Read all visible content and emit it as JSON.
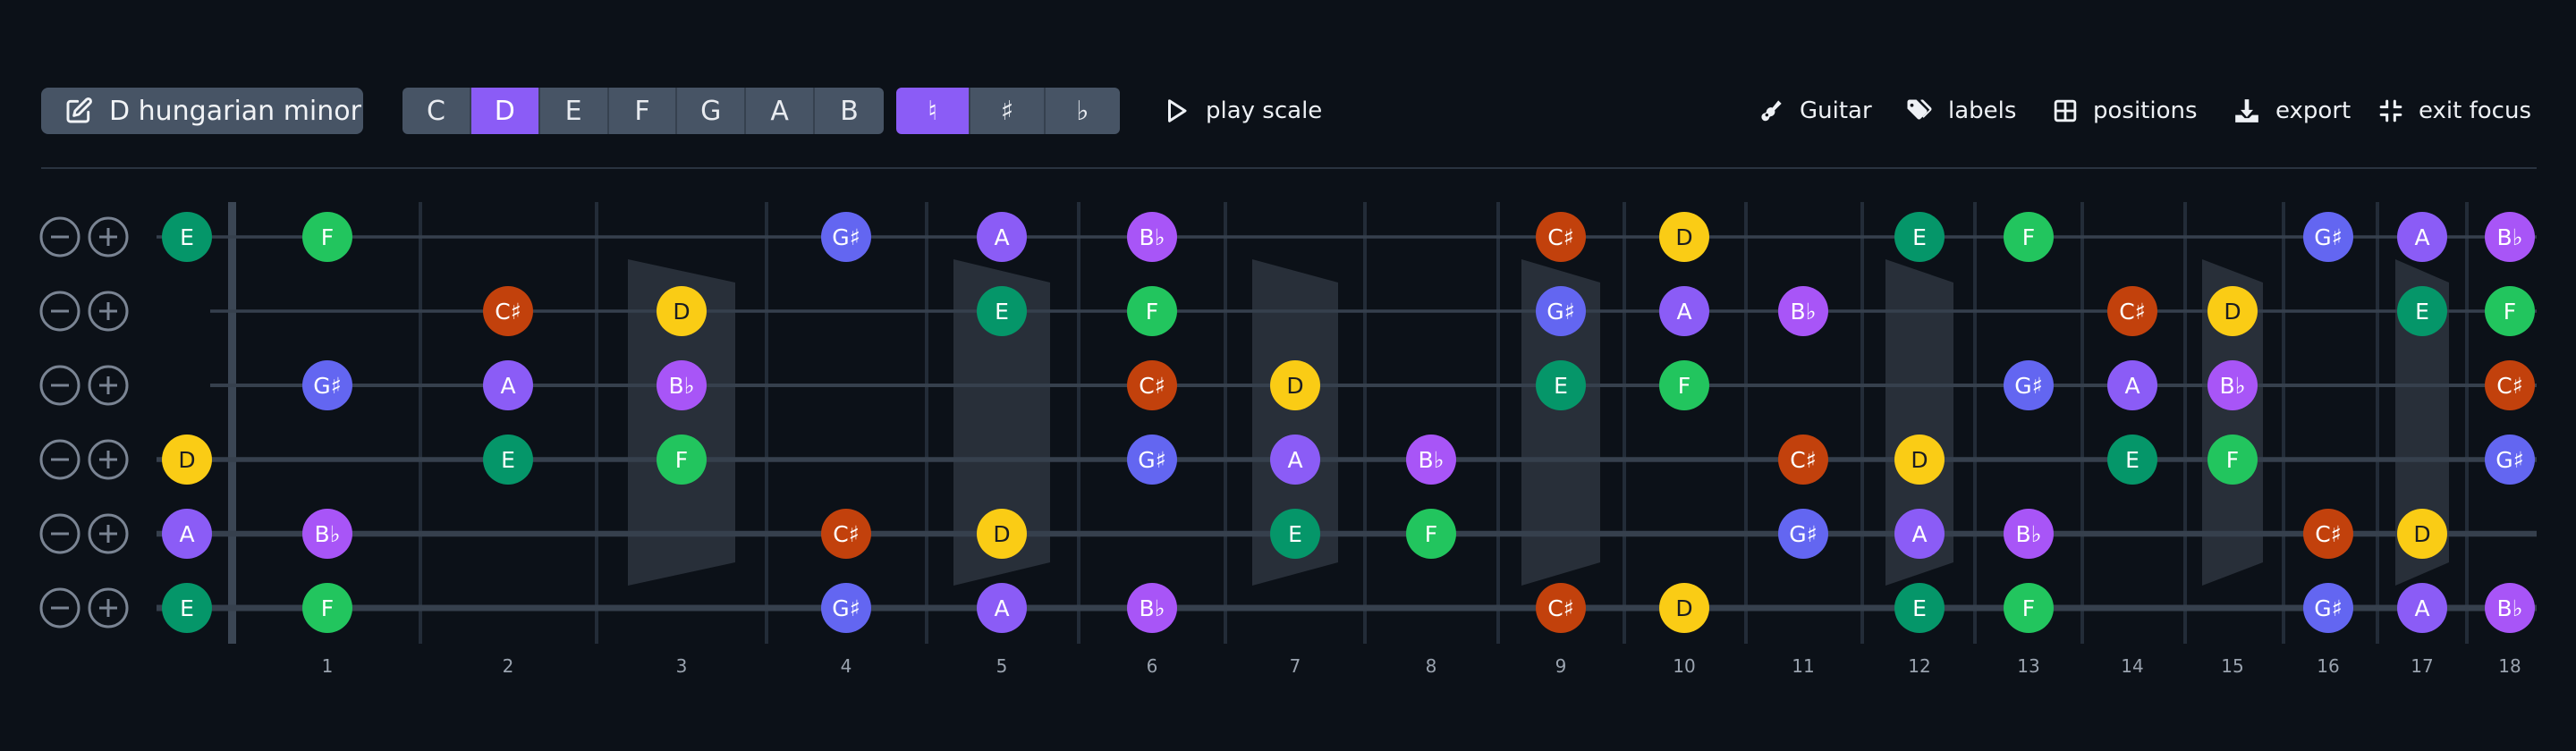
{
  "toolbar": {
    "scale_name": "D hungarian minor",
    "roots": [
      "C",
      "D",
      "E",
      "F",
      "G",
      "A",
      "B"
    ],
    "selected_root": "D",
    "accidentals": [
      "♮",
      "♯",
      "♭"
    ],
    "selected_accidental": "♮",
    "play_label": "play scale",
    "instrument_label": "Guitar",
    "labels_label": "labels",
    "positions_label": "positions",
    "export_label": "export",
    "exit_focus_label": "exit focus"
  },
  "fretboard": {
    "fret_numbers": [
      "1",
      "2",
      "3",
      "4",
      "5",
      "6",
      "7",
      "8",
      "9",
      "10",
      "11",
      "12",
      "13",
      "14",
      "15",
      "16",
      "17",
      "18"
    ],
    "note_colors": {
      "E": "#059669",
      "F": "#22c55e",
      "G♯": "#6366f1",
      "A": "#8b5cf6",
      "B♭": "#a855f7",
      "C♯": "#c2410c",
      "D": "#facc15"
    },
    "strings": [
      {
        "open": "E",
        "notes": [
          [
            1,
            "F"
          ],
          [
            4,
            "G♯"
          ],
          [
            5,
            "A"
          ],
          [
            6,
            "B♭"
          ],
          [
            9,
            "C♯"
          ],
          [
            10,
            "D"
          ],
          [
            12,
            "E"
          ],
          [
            13,
            "F"
          ],
          [
            16,
            "G♯"
          ],
          [
            17,
            "A"
          ],
          [
            18,
            "B♭"
          ]
        ]
      },
      {
        "open": "",
        "notes": [
          [
            2,
            "C♯"
          ],
          [
            3,
            "D"
          ],
          [
            5,
            "E"
          ],
          [
            6,
            "F"
          ],
          [
            9,
            "G♯"
          ],
          [
            10,
            "A"
          ],
          [
            11,
            "B♭"
          ],
          [
            14,
            "C♯"
          ],
          [
            15,
            "D"
          ],
          [
            17,
            "E"
          ],
          [
            18,
            "F"
          ]
        ]
      },
      {
        "open": "",
        "notes": [
          [
            1,
            "G♯"
          ],
          [
            2,
            "A"
          ],
          [
            3,
            "B♭"
          ],
          [
            6,
            "C♯"
          ],
          [
            7,
            "D"
          ],
          [
            9,
            "E"
          ],
          [
            10,
            "F"
          ],
          [
            13,
            "G♯"
          ],
          [
            14,
            "A"
          ],
          [
            15,
            "B♭"
          ],
          [
            18,
            "C♯"
          ]
        ]
      },
      {
        "open": "D",
        "notes": [
          [
            2,
            "E"
          ],
          [
            3,
            "F"
          ],
          [
            6,
            "G♯"
          ],
          [
            7,
            "A"
          ],
          [
            8,
            "B♭"
          ],
          [
            11,
            "C♯"
          ],
          [
            12,
            "D"
          ],
          [
            14,
            "E"
          ],
          [
            15,
            "F"
          ],
          [
            18,
            "G♯"
          ]
        ]
      },
      {
        "open": "A",
        "notes": [
          [
            1,
            "B♭"
          ],
          [
            4,
            "C♯"
          ],
          [
            5,
            "D"
          ],
          [
            7,
            "E"
          ],
          [
            8,
            "F"
          ],
          [
            11,
            "G♯"
          ],
          [
            12,
            "A"
          ],
          [
            13,
            "B♭"
          ],
          [
            16,
            "C♯"
          ],
          [
            17,
            "D"
          ]
        ]
      },
      {
        "open": "E",
        "notes": [
          [
            1,
            "F"
          ],
          [
            4,
            "G♯"
          ],
          [
            5,
            "A"
          ],
          [
            6,
            "B♭"
          ],
          [
            9,
            "C♯"
          ],
          [
            10,
            "D"
          ],
          [
            12,
            "E"
          ],
          [
            13,
            "F"
          ],
          [
            16,
            "G♯"
          ],
          [
            17,
            "A"
          ],
          [
            18,
            "B♭"
          ]
        ]
      }
    ],
    "position_highlights": [
      {
        "from_fret": 3,
        "to_fret": 3,
        "string_span": [
          2,
          5
        ]
      },
      {
        "from_fret": 5,
        "to_fret": 5,
        "string_span": [
          2,
          6
        ]
      },
      {
        "from_fret": 7,
        "to_fret": 7,
        "string_span": [
          2,
          5
        ]
      },
      {
        "from_fret": 9,
        "to_fret": 9,
        "string_span": [
          2,
          5
        ]
      },
      {
        "from_fret": 12,
        "to_fret": 12,
        "string_span": [
          2,
          5
        ]
      },
      {
        "from_fret": 15,
        "to_fret": 15,
        "string_span": [
          2,
          5
        ]
      },
      {
        "from_fret": 17,
        "to_fret": 17,
        "string_span": [
          2,
          6
        ]
      }
    ]
  }
}
